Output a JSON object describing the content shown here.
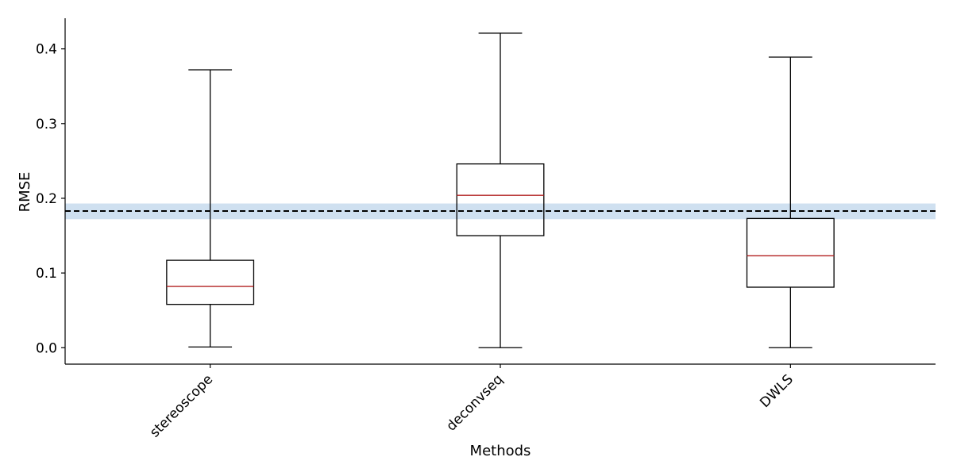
{
  "chart_data": {
    "type": "box",
    "xlabel": "Methods",
    "ylabel": "RMSE",
    "ylim": [
      -0.022,
      0.441
    ],
    "yticks": [
      0.0,
      0.1,
      0.2,
      0.3,
      0.4
    ],
    "ytick_labels": [
      "0.0",
      "0.1",
      "0.2",
      "0.3",
      "0.4"
    ],
    "categories": [
      "stereoscope",
      "deconvseq",
      "DWLS"
    ],
    "boxes": [
      {
        "category": "stereoscope",
        "whisker_low": 0.001,
        "q1": 0.058,
        "median": 0.082,
        "q3": 0.117,
        "whisker_high": 0.372
      },
      {
        "category": "deconvseq",
        "whisker_low": 0.0,
        "q1": 0.15,
        "median": 0.204,
        "q3": 0.246,
        "whisker_high": 0.421
      },
      {
        "category": "DWLS",
        "whisker_low": 0.0,
        "q1": 0.081,
        "median": 0.123,
        "q3": 0.173,
        "whisker_high": 0.389
      }
    ],
    "reference_line": {
      "value": 0.183,
      "style": "dashed",
      "color": "#000000"
    },
    "reference_band": {
      "low": 0.172,
      "high": 0.193,
      "color": "#cfe0f0"
    },
    "median_color": "#b22222",
    "box_color": "#000000",
    "grid": false,
    "legend": "none"
  }
}
